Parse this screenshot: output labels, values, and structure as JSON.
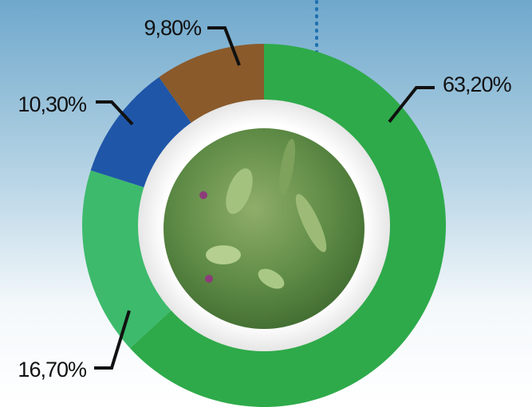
{
  "chart_data": {
    "type": "pie",
    "values": [
      63.2,
      16.7,
      10.3,
      9.8
    ],
    "value_labels": [
      "63,20%",
      "16,70%",
      "10,30%",
      "9,80%"
    ],
    "colors": [
      "#2eaa4a",
      "#3dba6c",
      "#1f56a8",
      "#8a5a2b"
    ]
  }
}
